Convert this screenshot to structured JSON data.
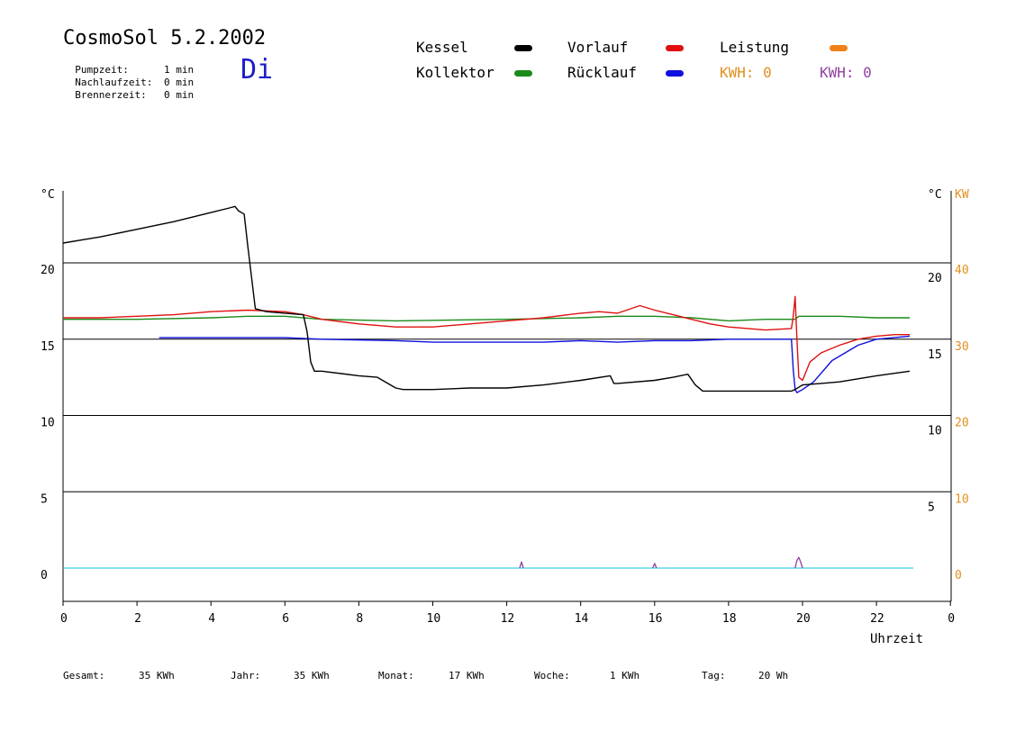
{
  "header": {
    "title": "CosmoSol 5.2.2002",
    "weekday": "Di",
    "pump": {
      "label": "Pumpzeit:",
      "value": "1 min"
    },
    "after": {
      "label": "Nachlaufzeit:",
      "value": "0 min"
    },
    "burner": {
      "label": "Brennerzeit:",
      "value": "0 min"
    }
  },
  "legend": {
    "kessel": "Kessel",
    "kollektor": "Kollektor",
    "vorlauf": "Vorlauf",
    "ruecklauf": "Rücklauf",
    "leistung": "Leistung",
    "kwh1": "KWH: 0",
    "kwh2": "KWH: 0"
  },
  "colors": {
    "kessel": "#000000",
    "kollektor": "#1a8a1a",
    "vorlauf": "#e01010",
    "ruecklauf": "#1010e0",
    "leistung": "#f08018",
    "kwh2": "#9040a0",
    "baseline": "#40d0e0"
  },
  "footer": {
    "gesamt_label": "Gesamt:",
    "gesamt_value": "35 KWh",
    "jahr_label": "Jahr:",
    "jahr_value": "35 KWh",
    "monat_label": "Monat:",
    "monat_value": "17 KWh",
    "woche_label": "Woche:",
    "woche_value": "1 KWh",
    "tag_label": "Tag:",
    "tag_value": "20 Wh"
  },
  "chart_data": {
    "type": "line",
    "xlabel": "Uhrzeit",
    "y_unit_left": "°C",
    "y_unit_right": "°C",
    "y2_unit": "KW",
    "x_ticks": [
      "0",
      "2",
      "4",
      "6",
      "8",
      "10",
      "12",
      "14",
      "16",
      "18",
      "20",
      "22",
      "0"
    ],
    "y_ticks_left": [
      "0",
      "5",
      "10",
      "15",
      "20"
    ],
    "y_ticks_right": [
      "5",
      "10",
      "15",
      "20"
    ],
    "y2_ticks": [
      "0",
      "10",
      "20",
      "30",
      "40"
    ],
    "xlim": [
      0,
      24
    ],
    "ylim": [
      -2,
      25
    ],
    "grid_lines_y": [
      5,
      10,
      15,
      20
    ],
    "series": [
      {
        "name": "Kessel",
        "color": "#000000",
        "x": [
          0,
          0.5,
          1,
          2,
          3,
          4,
          4.5,
          4.65,
          4.75,
          4.9,
          5.0,
          5.1,
          5.2,
          5.5,
          6,
          6.5,
          6.6,
          6.7,
          6.8,
          7,
          8,
          8.5,
          9,
          9.2,
          10,
          11,
          12,
          13,
          14,
          14.8,
          14.9,
          15,
          16,
          16.5,
          16.9,
          17.1,
          17.3,
          18,
          19,
          19.7,
          19.8,
          20,
          20.5,
          21,
          22,
          22.9
        ],
        "y": [
          21.3,
          21.5,
          21.7,
          22.2,
          22.7,
          23.3,
          23.6,
          23.7,
          23.4,
          23.2,
          21.0,
          19.0,
          17.0,
          16.8,
          16.7,
          16.6,
          15.5,
          13.5,
          12.9,
          12.9,
          12.6,
          12.5,
          11.8,
          11.7,
          11.7,
          11.8,
          11.8,
          12.0,
          12.3,
          12.6,
          12.1,
          12.1,
          12.3,
          12.5,
          12.7,
          12.0,
          11.6,
          11.6,
          11.6,
          11.6,
          11.7,
          12.0,
          12.1,
          12.2,
          12.6,
          12.9
        ]
      },
      {
        "name": "Kollektor",
        "color": "#1a8a1a",
        "x": [
          0,
          2,
          4,
          5,
          6,
          7,
          9,
          12,
          14,
          15,
          16,
          17,
          18,
          19,
          19.8,
          19.9,
          20,
          21,
          22,
          22.9
        ],
        "y": [
          16.3,
          16.3,
          16.4,
          16.5,
          16.5,
          16.3,
          16.2,
          16.3,
          16.4,
          16.5,
          16.5,
          16.4,
          16.2,
          16.3,
          16.3,
          16.5,
          16.5,
          16.5,
          16.4,
          16.4
        ]
      },
      {
        "name": "Vorlauf",
        "color": "#e01010",
        "x": [
          0,
          1,
          2,
          3,
          4,
          5,
          6,
          6.5,
          7,
          8,
          9,
          10,
          11,
          12,
          13,
          14,
          14.5,
          15,
          15.6,
          16,
          16.5,
          17,
          17.5,
          18,
          19,
          19.7,
          19.75,
          19.8,
          19.85,
          19.9,
          20.0,
          20.2,
          20.5,
          21,
          21.5,
          22,
          22.5,
          22.9
        ],
        "y": [
          16.4,
          16.4,
          16.5,
          16.6,
          16.8,
          16.9,
          16.8,
          16.6,
          16.3,
          16.0,
          15.8,
          15.8,
          16.0,
          16.2,
          16.4,
          16.7,
          16.8,
          16.7,
          17.2,
          16.9,
          16.6,
          16.3,
          16.0,
          15.8,
          15.6,
          15.7,
          16.5,
          17.8,
          15.0,
          12.5,
          12.3,
          13.5,
          14.1,
          14.6,
          15.0,
          15.2,
          15.3,
          15.3
        ]
      },
      {
        "name": "Rücklauf",
        "color": "#1010e0",
        "x": [
          2.6,
          4,
          6,
          7,
          9,
          10,
          12,
          13,
          14,
          15,
          16,
          17,
          18,
          19,
          19.7,
          19.75,
          19.8,
          19.85,
          20,
          20.3,
          20.8,
          21.5,
          22,
          22.9
        ],
        "y": [
          15.1,
          15.1,
          15.1,
          15.0,
          14.9,
          14.8,
          14.8,
          14.8,
          14.9,
          14.8,
          14.9,
          14.9,
          15.0,
          15.0,
          15.0,
          13.0,
          11.7,
          11.5,
          11.7,
          12.2,
          13.6,
          14.6,
          15.0,
          15.2
        ]
      }
    ],
    "baseline": {
      "name": "",
      "color": "#40d0e0",
      "x": [
        0,
        23
      ],
      "y": [
        0,
        0
      ]
    },
    "kwh2_spikes": [
      {
        "x": [
          12.35,
          12.4,
          12.45
        ],
        "y": [
          0.0,
          0.4,
          0.0
        ]
      },
      {
        "x": [
          15.95,
          16.0,
          16.05
        ],
        "y": [
          0.0,
          0.3,
          0.0
        ]
      },
      {
        "x": [
          19.8,
          19.85,
          19.9,
          19.95,
          20.0
        ],
        "y": [
          0.0,
          0.5,
          0.7,
          0.4,
          0.0
        ]
      }
    ]
  }
}
